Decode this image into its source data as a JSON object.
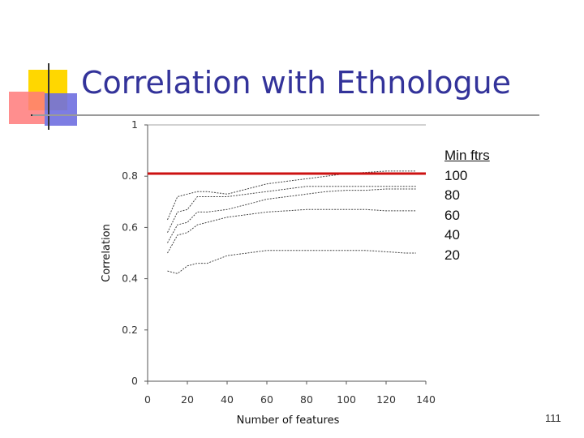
{
  "slide": {
    "title": "Correlation with Ethnologue",
    "page_number": "111"
  },
  "legend": {
    "heading": "Min ftrs",
    "items": [
      "100",
      "80",
      "60",
      "40",
      "20"
    ]
  },
  "chart_data": {
    "type": "line",
    "title": "Correlation with Ethnologue",
    "xlabel": "Number of features",
    "ylabel": "Correlation",
    "xlim": [
      0,
      140
    ],
    "ylim": [
      0,
      1
    ],
    "x_ticks": [
      0,
      20,
      40,
      60,
      80,
      100,
      120,
      140
    ],
    "y_ticks": [
      0,
      0.2,
      0.4,
      0.6,
      0.8,
      1
    ],
    "y_tick_labels": [
      "0",
      "0.2",
      "0.4",
      "0.6",
      "0.8",
      "1"
    ],
    "reference_line": {
      "y": 0.81,
      "color": "#cc1111"
    },
    "series": [
      {
        "name": "100",
        "x": [
          10,
          15,
          20,
          25,
          30,
          40,
          50,
          60,
          70,
          80,
          90,
          100,
          110,
          120,
          130,
          135
        ],
        "values": [
          0.63,
          0.72,
          0.73,
          0.74,
          0.74,
          0.73,
          0.75,
          0.77,
          0.78,
          0.79,
          0.8,
          0.81,
          0.815,
          0.82,
          0.82,
          0.82
        ]
      },
      {
        "name": "80",
        "x": [
          10,
          15,
          20,
          25,
          30,
          40,
          50,
          60,
          70,
          80,
          90,
          100,
          110,
          120,
          130,
          135
        ],
        "values": [
          0.58,
          0.66,
          0.67,
          0.72,
          0.72,
          0.72,
          0.73,
          0.74,
          0.75,
          0.76,
          0.76,
          0.76,
          0.76,
          0.76,
          0.76,
          0.76
        ]
      },
      {
        "name": "60",
        "x": [
          10,
          15,
          20,
          25,
          30,
          40,
          50,
          60,
          70,
          80,
          90,
          100,
          110,
          120,
          130,
          135
        ],
        "values": [
          0.54,
          0.61,
          0.62,
          0.66,
          0.66,
          0.67,
          0.69,
          0.71,
          0.72,
          0.73,
          0.74,
          0.745,
          0.745,
          0.75,
          0.75,
          0.75
        ]
      },
      {
        "name": "40",
        "x": [
          10,
          15,
          20,
          25,
          30,
          40,
          50,
          60,
          70,
          80,
          90,
          100,
          110,
          120,
          130,
          135
        ],
        "values": [
          0.5,
          0.57,
          0.58,
          0.61,
          0.62,
          0.64,
          0.65,
          0.66,
          0.665,
          0.67,
          0.67,
          0.67,
          0.67,
          0.665,
          0.665,
          0.665
        ]
      },
      {
        "name": "20",
        "x": [
          10,
          15,
          20,
          25,
          30,
          40,
          50,
          60,
          70,
          80,
          90,
          100,
          110,
          120,
          130,
          135
        ],
        "values": [
          0.43,
          0.42,
          0.45,
          0.46,
          0.46,
          0.49,
          0.5,
          0.51,
          0.51,
          0.51,
          0.51,
          0.51,
          0.51,
          0.505,
          0.5,
          0.5
        ]
      }
    ]
  }
}
